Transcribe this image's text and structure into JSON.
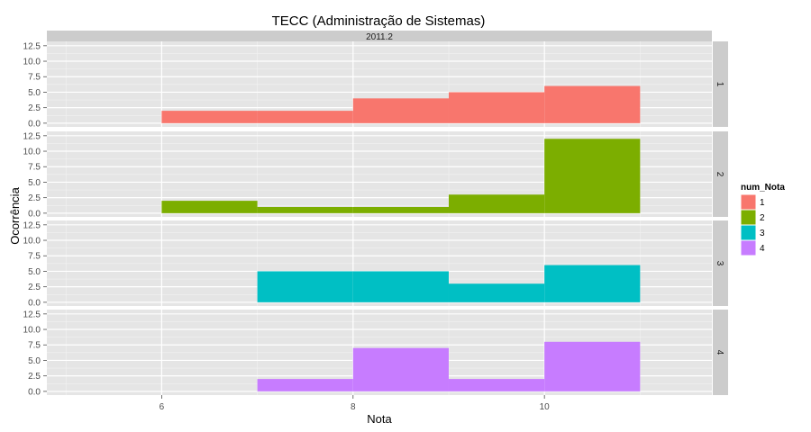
{
  "chart_data": {
    "type": "bar",
    "title": "TECC (Administração de Sistemas)",
    "xlabel": "Nota",
    "ylabel": "Ocorrência",
    "column_strip": "2011.2",
    "x_ticks": [
      6,
      8,
      10
    ],
    "y_ticks": [
      0.0,
      2.5,
      5.0,
      7.5,
      10.0,
      12.5
    ],
    "y_tick_labels": [
      "0.0",
      "2.5",
      "5.0",
      "7.5",
      "10.0",
      "12.5"
    ],
    "x_tick_labels": [
      "6",
      "8",
      "10"
    ],
    "xlim": [
      4.8,
      11.75
    ],
    "ylim": [
      -0.6,
      13.2
    ],
    "bin_edges": [
      6,
      7,
      8,
      9,
      10,
      11
    ],
    "legend_title": "num_Nota",
    "series": [
      {
        "name": "1",
        "color": "#F8766D",
        "panel_label": "1",
        "values": [
          2,
          2,
          4,
          5,
          6
        ]
      },
      {
        "name": "2",
        "color": "#7CAE00",
        "panel_label": "2",
        "values": [
          2,
          1,
          1,
          3,
          12
        ]
      },
      {
        "name": "3",
        "color": "#00BFC4",
        "panel_label": "3",
        "values": [
          0,
          5,
          5,
          3,
          6
        ]
      },
      {
        "name": "4",
        "color": "#C77CFF",
        "panel_label": "4",
        "values": [
          0,
          2,
          7,
          2,
          8
        ]
      }
    ]
  }
}
